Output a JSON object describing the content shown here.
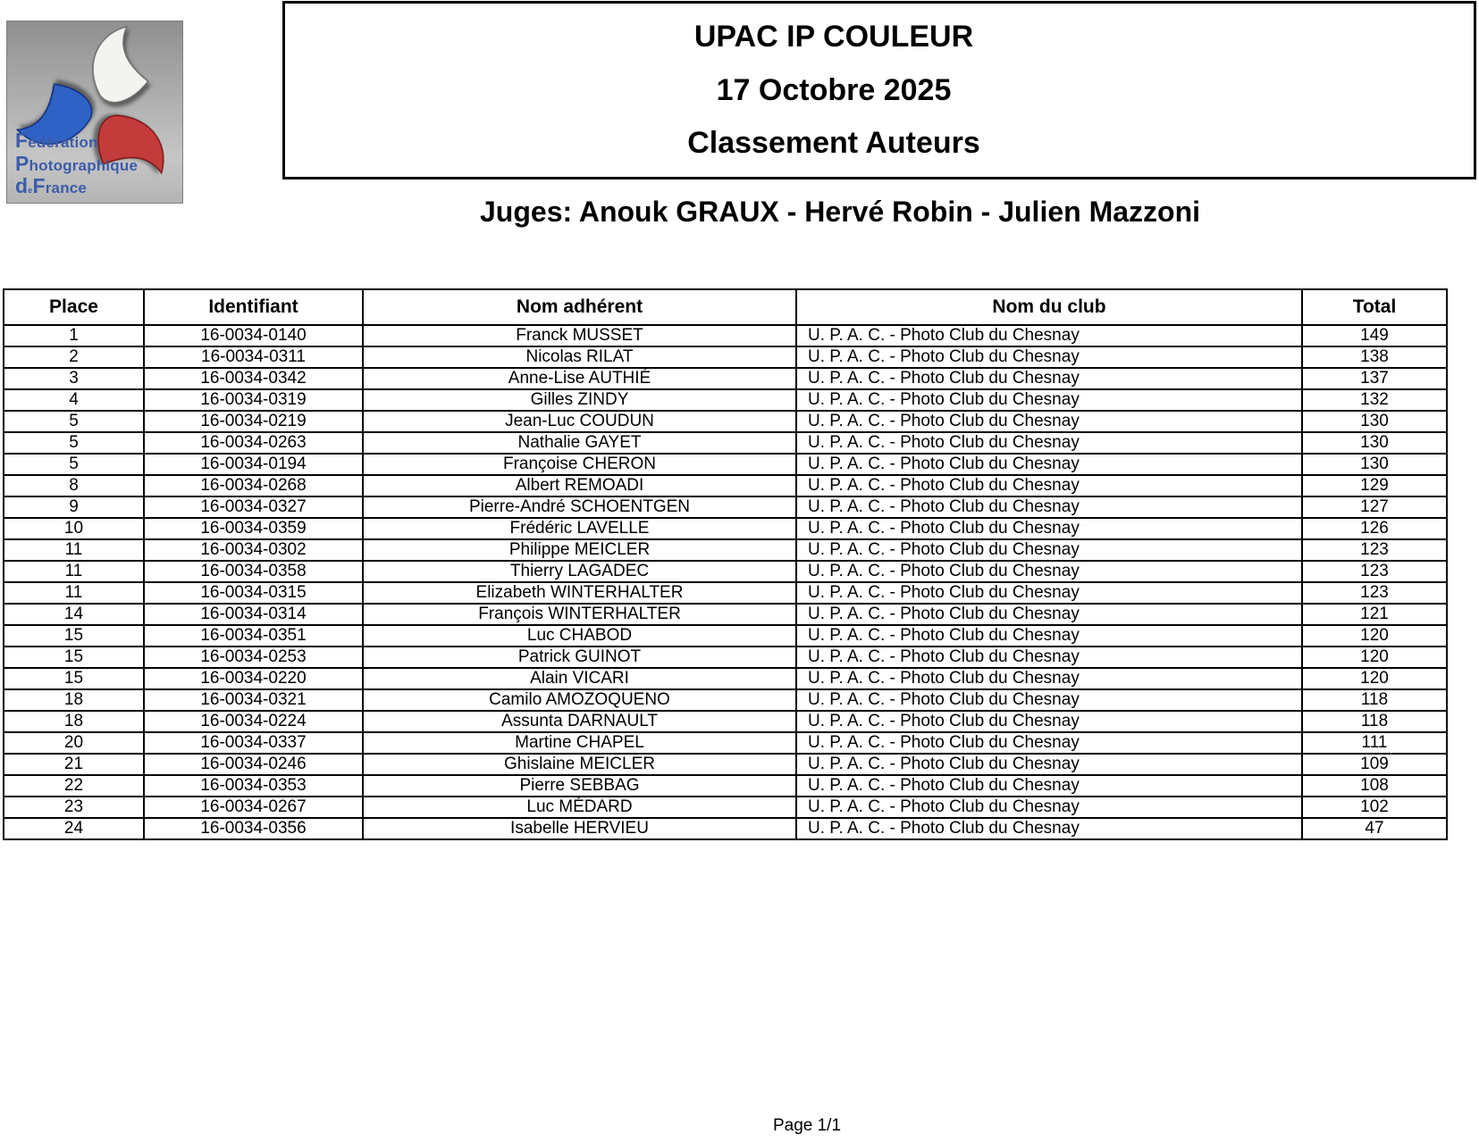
{
  "logo": {
    "line1": "Fédération",
    "line2": "Photographique",
    "line3_small": "de",
    "line3": "France",
    "colors": {
      "text_blue": "#3b5ca9",
      "blade_white": "#f3f3f0",
      "blade_blue": "#2f62c6",
      "blade_red": "#c43b3b"
    }
  },
  "title_box": {
    "lines": [
      "UPAC IP COULEUR",
      "17 Octobre 2025",
      "Classement Auteurs"
    ]
  },
  "judges_line": "Juges: Anouk GRAUX - Hervé Robin - Julien Mazzoni",
  "table": {
    "columns": [
      "Place",
      "Identifiant",
      "Nom adhérent",
      "Nom du club",
      "Total"
    ],
    "rows": [
      {
        "place": "1",
        "id": "16-0034-0140",
        "name": "Franck MUSSET",
        "club": "U. P. A. C. - Photo Club du Chesnay",
        "total": "149"
      },
      {
        "place": "2",
        "id": "16-0034-0311",
        "name": "Nicolas RILAT",
        "club": "U. P. A. C. - Photo Club du Chesnay",
        "total": "138"
      },
      {
        "place": "3",
        "id": "16-0034-0342",
        "name": "Anne-Lise AUTHIÉ",
        "club": "U. P. A. C. - Photo Club du Chesnay",
        "total": "137"
      },
      {
        "place": "4",
        "id": "16-0034-0319",
        "name": "Gilles ZINDY",
        "club": "U. P. A. C. - Photo Club du Chesnay",
        "total": "132"
      },
      {
        "place": "5",
        "id": "16-0034-0219",
        "name": "Jean-Luc COUDUN",
        "club": "U. P. A. C. - Photo Club du Chesnay",
        "total": "130"
      },
      {
        "place": "5",
        "id": "16-0034-0263",
        "name": "Nathalie GAYET",
        "club": "U. P. A. C. - Photo Club du Chesnay",
        "total": "130"
      },
      {
        "place": "5",
        "id": "16-0034-0194",
        "name": "Françoise CHERON",
        "club": "U. P. A. C. - Photo Club du Chesnay",
        "total": "130"
      },
      {
        "place": "8",
        "id": "16-0034-0268",
        "name": "Albert REMOADI",
        "club": "U. P. A. C. - Photo Club du Chesnay",
        "total": "129"
      },
      {
        "place": "9",
        "id": "16-0034-0327",
        "name": "Pierre-André SCHOENTGEN",
        "club": "U. P. A. C. - Photo Club du Chesnay",
        "total": "127"
      },
      {
        "place": "10",
        "id": "16-0034-0359",
        "name": "Frédéric LAVELLE",
        "club": "U. P. A. C. - Photo Club du Chesnay",
        "total": "126"
      },
      {
        "place": "11",
        "id": "16-0034-0302",
        "name": "Philippe MEICLER",
        "club": "U. P. A. C. - Photo Club du Chesnay",
        "total": "123"
      },
      {
        "place": "11",
        "id": "16-0034-0358",
        "name": "Thierry LAGADEC",
        "club": "U. P. A. C. - Photo Club du Chesnay",
        "total": "123"
      },
      {
        "place": "11",
        "id": "16-0034-0315",
        "name": "Elizabeth WINTERHALTER",
        "club": "U. P. A. C. - Photo Club du Chesnay",
        "total": "123"
      },
      {
        "place": "14",
        "id": "16-0034-0314",
        "name": "François WINTERHALTER",
        "club": "U. P. A. C. - Photo Club du Chesnay",
        "total": "121"
      },
      {
        "place": "15",
        "id": "16-0034-0351",
        "name": "Luc CHABOD",
        "club": "U. P. A. C. - Photo Club du Chesnay",
        "total": "120"
      },
      {
        "place": "15",
        "id": "16-0034-0253",
        "name": "Patrick GUINOT",
        "club": "U. P. A. C. - Photo Club du Chesnay",
        "total": "120"
      },
      {
        "place": "15",
        "id": "16-0034-0220",
        "name": "Alain VICARI",
        "club": "U. P. A. C. - Photo Club du Chesnay",
        "total": "120"
      },
      {
        "place": "18",
        "id": "16-0034-0321",
        "name": "Camilo AMOZOQUENO",
        "club": "U. P. A. C. - Photo Club du Chesnay",
        "total": "118"
      },
      {
        "place": "18",
        "id": "16-0034-0224",
        "name": "Assunta DARNAULT",
        "club": "U. P. A. C. - Photo Club du Chesnay",
        "total": "118"
      },
      {
        "place": "20",
        "id": "16-0034-0337",
        "name": "Martine CHAPEL",
        "club": "U. P. A. C. - Photo Club du Chesnay",
        "total": "111"
      },
      {
        "place": "21",
        "id": "16-0034-0246",
        "name": "Ghislaine MEICLER",
        "club": "U. P. A. C. - Photo Club du Chesnay",
        "total": "109"
      },
      {
        "place": "22",
        "id": "16-0034-0353",
        "name": "Pierre SEBBAG",
        "club": "U. P. A. C. - Photo Club du Chesnay",
        "total": "108"
      },
      {
        "place": "23",
        "id": "16-0034-0267",
        "name": "Luc MÉDARD",
        "club": "U. P. A. C. - Photo Club du Chesnay",
        "total": "102"
      },
      {
        "place": "24",
        "id": "16-0034-0356",
        "name": "Isabelle HERVIEU",
        "club": "U. P. A. C. - Photo Club du Chesnay",
        "total": "47"
      }
    ]
  },
  "footer": {
    "page_label": "Page 1/1"
  }
}
